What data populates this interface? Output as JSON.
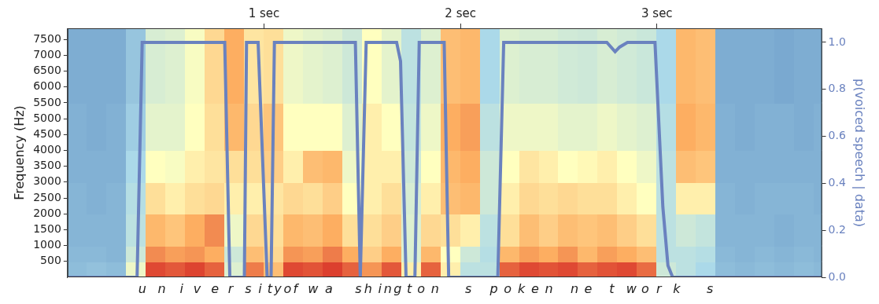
{
  "chart_data": {
    "type": "line",
    "ylabel": "Frequency (Hz)",
    "y2label": "p(voiced speech | data)",
    "xlim": [
      0,
      3.84
    ],
    "xticks": [
      {
        "value": 1,
        "label": "1 sec"
      },
      {
        "value": 2,
        "label": "2 sec"
      },
      {
        "value": 3,
        "label": "3 sec"
      }
    ],
    "ylim": [
      0,
      7850
    ],
    "yticks": [
      500,
      1000,
      1500,
      2000,
      2500,
      3000,
      3500,
      4000,
      4500,
      5000,
      5500,
      6000,
      6500,
      7000,
      7500
    ],
    "y2lim": [
      0,
      1.06
    ],
    "y2ticks": [
      {
        "value": 0,
        "label": "0.0"
      },
      {
        "value": 0.2,
        "label": "0.2"
      },
      {
        "value": 0.4,
        "label": "0.4"
      },
      {
        "value": 0.6,
        "label": "0.6"
      },
      {
        "value": 0.8,
        "label": "0.8"
      },
      {
        "value": 1,
        "label": "1.0"
      }
    ],
    "grid": false,
    "x": [
      0,
      0.354,
      0.38,
      0.8,
      0.826,
      0.9,
      0.911,
      0.97,
      1.016,
      1.036,
      1.053,
      1.465,
      1.49,
      1.52,
      1.675,
      1.695,
      1.723,
      1.768,
      1.79,
      1.917,
      1.94,
      2.19,
      2.22,
      2.745,
      2.787,
      2.81,
      2.85,
      2.99,
      3.03,
      3.056,
      3.08,
      3.84
    ],
    "series": [
      {
        "color": "#6a82bf",
        "axis": "y2",
        "values": [
          0,
          0,
          1,
          1,
          0,
          0,
          1,
          1,
          0,
          0,
          1,
          1,
          0,
          1,
          1,
          0.92,
          0,
          0,
          1,
          1,
          0,
          0,
          1,
          1,
          0.96,
          0.98,
          1,
          1,
          0.3,
          0.05,
          0,
          0
        ]
      }
    ],
    "spectrogram": {
      "time_edges": [
        0,
        0.1,
        0.2,
        0.3,
        0.4,
        0.5,
        0.6,
        0.7,
        0.8,
        0.9,
        1.0,
        1.1,
        1.2,
        1.3,
        1.4,
        1.5,
        1.6,
        1.7,
        1.8,
        1.9,
        2.0,
        2.1,
        2.2,
        2.3,
        2.4,
        2.5,
        2.6,
        2.7,
        2.8,
        2.9,
        3.0,
        3.1,
        3.2,
        3.3,
        3.4,
        3.5,
        3.6,
        3.7,
        3.8,
        3.9
      ],
      "frequency_edges": [
        0,
        500,
        1000,
        2000,
        3000,
        4000,
        5500,
        7850
      ],
      "intensity": [
        [
          0.18,
          0.17,
          0.16,
          0.16,
          0.15,
          0.15,
          0.14
        ],
        [
          0.19,
          0.17,
          0.16,
          0.15,
          0.15,
          0.14,
          0.14
        ],
        [
          0.18,
          0.16,
          0.16,
          0.16,
          0.15,
          0.15,
          0.14
        ],
        [
          0.45,
          0.35,
          0.3,
          0.28,
          0.25,
          0.22,
          0.2
        ],
        [
          0.95,
          0.82,
          0.72,
          0.6,
          0.5,
          0.42,
          0.38
        ],
        [
          0.92,
          0.78,
          0.68,
          0.55,
          0.48,
          0.42,
          0.4
        ],
        [
          0.96,
          0.8,
          0.75,
          0.6,
          0.55,
          0.5,
          0.48
        ],
        [
          0.9,
          0.75,
          0.82,
          0.62,
          0.58,
          0.6,
          0.62
        ],
        [
          0.4,
          0.35,
          0.45,
          0.55,
          0.6,
          0.72,
          0.75
        ],
        [
          0.85,
          0.7,
          0.62,
          0.55,
          0.6,
          0.62,
          0.58
        ],
        [
          0.7,
          0.62,
          0.6,
          0.58,
          0.65,
          0.68,
          0.6
        ],
        [
          0.95,
          0.8,
          0.72,
          0.62,
          0.55,
          0.5,
          0.45
        ],
        [
          0.93,
          0.78,
          0.7,
          0.6,
          0.7,
          0.5,
          0.42
        ],
        [
          0.97,
          0.85,
          0.75,
          0.65,
          0.72,
          0.5,
          0.4
        ],
        [
          0.9,
          0.75,
          0.6,
          0.5,
          0.45,
          0.4,
          0.35
        ],
        [
          0.8,
          0.65,
          0.6,
          0.55,
          0.55,
          0.55,
          0.5
        ],
        [
          0.92,
          0.75,
          0.65,
          0.6,
          0.55,
          0.5,
          0.42
        ],
        [
          0.55,
          0.4,
          0.4,
          0.38,
          0.35,
          0.32,
          0.3
        ],
        [
          0.9,
          0.72,
          0.62,
          0.55,
          0.5,
          0.45,
          0.4
        ],
        [
          0.55,
          0.5,
          0.6,
          0.7,
          0.72,
          0.75,
          0.7
        ],
        [
          0.3,
          0.35,
          0.55,
          0.72,
          0.75,
          0.78,
          0.72
        ],
        [
          0.3,
          0.28,
          0.3,
          0.35,
          0.35,
          0.3,
          0.25
        ],
        [
          0.9,
          0.72,
          0.6,
          0.55,
          0.5,
          0.45,
          0.4
        ],
        [
          0.95,
          0.78,
          0.7,
          0.62,
          0.58,
          0.45,
          0.38
        ],
        [
          0.93,
          0.75,
          0.65,
          0.6,
          0.55,
          0.45,
          0.38
        ],
        [
          0.95,
          0.8,
          0.7,
          0.62,
          0.5,
          0.42,
          0.36
        ],
        [
          0.9,
          0.72,
          0.68,
          0.6,
          0.52,
          0.42,
          0.35
        ],
        [
          0.93,
          0.78,
          0.7,
          0.6,
          0.55,
          0.45,
          0.38
        ],
        [
          0.95,
          0.75,
          0.65,
          0.55,
          0.5,
          0.42,
          0.36
        ],
        [
          0.88,
          0.7,
          0.6,
          0.5,
          0.45,
          0.4,
          0.34
        ],
        [
          0.35,
          0.3,
          0.3,
          0.3,
          0.3,
          0.28,
          0.25
        ],
        [
          0.3,
          0.3,
          0.35,
          0.55,
          0.7,
          0.75,
          0.72
        ],
        [
          0.25,
          0.28,
          0.32,
          0.55,
          0.68,
          0.72,
          0.7
        ],
        [
          0.18,
          0.17,
          0.16,
          0.16,
          0.15,
          0.15,
          0.14
        ],
        [
          0.17,
          0.16,
          0.16,
          0.15,
          0.15,
          0.14,
          0.14
        ],
        [
          0.18,
          0.17,
          0.16,
          0.16,
          0.15,
          0.15,
          0.14
        ],
        [
          0.17,
          0.16,
          0.15,
          0.16,
          0.15,
          0.15,
          0.13
        ],
        [
          0.18,
          0.17,
          0.16,
          0.16,
          0.15,
          0.14,
          0.14
        ],
        [
          0.17,
          0.16,
          0.16,
          0.15,
          0.15,
          0.15,
          0.14
        ]
      ]
    },
    "transcript": [
      {
        "text": "u",
        "x": 0.38
      },
      {
        "text": "n",
        "x": 0.48
      },
      {
        "text": "i",
        "x": 0.58
      },
      {
        "text": "v",
        "x": 0.66
      },
      {
        "text": "e",
        "x": 0.75
      },
      {
        "text": "r",
        "x": 0.83
      },
      {
        "text": "s",
        "x": 0.92
      },
      {
        "text": "i",
        "x": 0.98
      },
      {
        "text": "t",
        "x": 1.03
      },
      {
        "text": "y",
        "x": 1.07
      },
      {
        "text": "o",
        "x": 1.12
      },
      {
        "text": "f",
        "x": 1.16
      },
      {
        "text": "w",
        "x": 1.25
      },
      {
        "text": "a",
        "x": 1.33
      },
      {
        "text": "s",
        "x": 1.48
      },
      {
        "text": "h",
        "x": 1.53
      },
      {
        "text": "i",
        "x": 1.59
      },
      {
        "text": "n",
        "x": 1.63
      },
      {
        "text": "g",
        "x": 1.68
      },
      {
        "text": "t",
        "x": 1.74
      },
      {
        "text": "o",
        "x": 1.8
      },
      {
        "text": "n",
        "x": 1.87
      },
      {
        "text": "s",
        "x": 2.04
      },
      {
        "text": "p",
        "x": 2.17
      },
      {
        "text": "o",
        "x": 2.24
      },
      {
        "text": "k",
        "x": 2.31
      },
      {
        "text": "e",
        "x": 2.38
      },
      {
        "text": "n",
        "x": 2.45
      },
      {
        "text": "n",
        "x": 2.58
      },
      {
        "text": "e",
        "x": 2.65
      },
      {
        "text": "t",
        "x": 2.77
      },
      {
        "text": "w",
        "x": 2.87
      },
      {
        "text": "o",
        "x": 2.94
      },
      {
        "text": "r",
        "x": 3.01
      },
      {
        "text": "k",
        "x": 3.1
      },
      {
        "text": "s",
        "x": 3.27
      }
    ]
  }
}
